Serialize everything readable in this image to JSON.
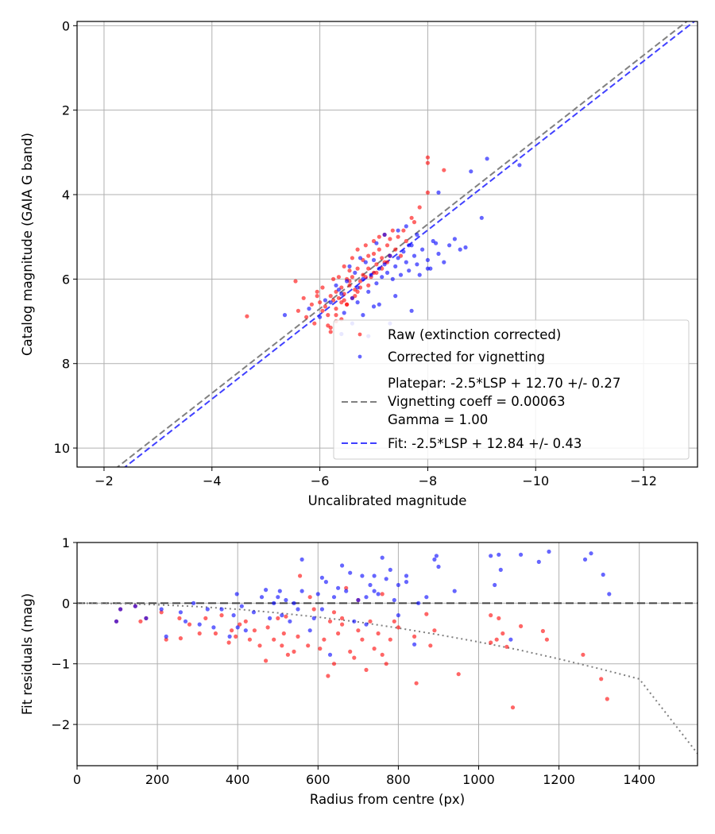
{
  "chart_data": [
    {
      "type": "scatter",
      "xlabel": "Uncalibrated magnitude",
      "ylabel": "Catalog magnitude (GAIA G band)",
      "xlim": [
        -1.5,
        -13
      ],
      "ylim": [
        10.45,
        -0.1
      ],
      "x_inverted": true,
      "y_inverted": true,
      "xticks": [
        -2,
        -4,
        -6,
        -8,
        -10,
        -12
      ],
      "xtick_labels": [
        "−2",
        "−4",
        "−6",
        "−8",
        "−10",
        "−12"
      ],
      "yticks": [
        0,
        2,
        4,
        6,
        8,
        10
      ],
      "ytick_labels": [
        "0",
        "2",
        "4",
        "6",
        "8",
        "10"
      ],
      "grid": true,
      "legend_position": "lower-right",
      "series": [
        {
          "name": "Raw (extinction corrected)",
          "kind": "points",
          "color": "#ff0000",
          "x": [
            -4.65,
            -5.55,
            -5.6,
            -5.7,
            -5.75,
            -5.85,
            -5.9,
            -5.95,
            -6.0,
            -6.05,
            -6.1,
            -6.15,
            -6.2,
            -6.2,
            -6.25,
            -6.25,
            -6.3,
            -6.3,
            -6.35,
            -6.35,
            -6.4,
            -6.4,
            -6.45,
            -6.45,
            -6.5,
            -6.5,
            -6.55,
            -6.55,
            -6.6,
            -6.6,
            -6.65,
            -6.7,
            -6.7,
            -6.75,
            -6.8,
            -6.8,
            -6.85,
            -6.9,
            -6.9,
            -6.95,
            -7.0,
            -7.0,
            -7.05,
            -7.1,
            -7.1,
            -7.15,
            -7.2,
            -7.2,
            -7.25,
            -7.3,
            -7.3,
            -7.35,
            -7.4,
            -7.45,
            -7.5,
            -7.55,
            -7.6,
            -7.7,
            -7.75,
            -7.85,
            -8.0,
            -8.0,
            -8.0,
            -8.3,
            -6.2,
            -6.3,
            -6.4,
            -6.5,
            -6.6,
            -6.7,
            -6.9,
            -7.05,
            -7.15,
            -7.25,
            -5.95,
            -6.05,
            -6.15,
            -6.3,
            -6.45,
            -6.55,
            -6.65,
            -6.75,
            -6.85,
            -7.0
          ],
          "y": [
            6.88,
            6.05,
            6.75,
            6.45,
            6.9,
            6.6,
            7.05,
            6.3,
            6.55,
            6.2,
            6.65,
            6.85,
            6.4,
            7.15,
            6.0,
            6.5,
            6.3,
            6.7,
            5.95,
            6.45,
            6.2,
            6.55,
            5.7,
            6.35,
            6.0,
            6.6,
            5.8,
            6.15,
            5.5,
            5.95,
            6.25,
            5.3,
            5.75,
            6.05,
            5.55,
            5.9,
            5.2,
            5.45,
            5.75,
            5.95,
            5.1,
            5.4,
            5.65,
            5.0,
            5.3,
            5.5,
            4.95,
            5.6,
            5.2,
            5.05,
            5.45,
            4.85,
            5.3,
            5.0,
            5.45,
            4.85,
            5.1,
            4.55,
            4.65,
            4.3,
            3.12,
            3.25,
            3.95,
            3.42,
            7.25,
            7.0,
            6.95,
            6.6,
            6.45,
            6.3,
            6.15,
            5.85,
            5.75,
            5.6,
            6.4,
            6.75,
            7.1,
            6.85,
            6.5,
            6.05,
            6.4,
            6.2,
            5.95,
            5.85
          ]
        },
        {
          "name": "Corrected for vignetting",
          "kind": "points",
          "color": "#0000ff",
          "x": [
            -5.35,
            -5.8,
            -6.0,
            -6.1,
            -6.2,
            -6.3,
            -6.4,
            -6.45,
            -6.5,
            -6.6,
            -6.65,
            -6.7,
            -6.8,
            -6.85,
            -6.9,
            -6.95,
            -7.0,
            -7.05,
            -7.1,
            -7.15,
            -7.2,
            -7.25,
            -7.3,
            -7.35,
            -7.4,
            -7.45,
            -7.5,
            -7.55,
            -7.6,
            -7.65,
            -7.7,
            -7.75,
            -7.8,
            -7.85,
            -7.9,
            -8.0,
            -8.1,
            -8.2,
            -8.3,
            -8.5,
            -8.6,
            -8.7,
            -9.0,
            -9.1,
            -9.7,
            -8.8,
            -8.2,
            -7.6,
            -7.1,
            -6.8,
            -6.6,
            -6.9,
            -7.3,
            -7.7,
            -8.0,
            -8.4,
            -6.35,
            -6.55,
            -6.75,
            -7.05,
            -7.2,
            -7.45,
            -7.65,
            -7.8,
            -8.05,
            -8.15,
            -6.4,
            -6.7,
            -7.0,
            -7.4
          ],
          "y": [
            6.85,
            6.7,
            6.9,
            6.5,
            6.55,
            6.15,
            6.35,
            6.8,
            6.05,
            6.45,
            5.85,
            6.2,
            6.0,
            5.6,
            6.3,
            5.9,
            5.55,
            6.1,
            5.75,
            5.95,
            5.65,
            5.85,
            5.45,
            6.0,
            5.7,
            5.5,
            5.9,
            5.35,
            5.6,
            5.8,
            5.2,
            5.45,
            5.65,
            5.9,
            5.3,
            5.55,
            5.1,
            5.4,
            5.6,
            5.05,
            5.3,
            5.25,
            4.55,
            3.15,
            3.3,
            3.45,
            3.95,
            4.75,
            6.6,
            6.85,
            7.05,
            7.35,
            7.05,
            6.75,
            5.75,
            5.2,
            6.25,
            5.7,
            5.5,
            5.15,
            4.95,
            4.85,
            5.2,
            4.95,
            5.75,
            5.15,
            7.3,
            6.55,
            6.65,
            6.4
          ]
        },
        {
          "name": "Platepar: -2.5*LSP + 12.70 +/- 0.27\nVignetting coeff = 0.00063\nGamma = 1.00",
          "kind": "line",
          "dash": "8,4",
          "color": "#808080",
          "x": [
            -1.5,
            -13
          ],
          "y": [
            11.2,
            -0.3
          ]
        },
        {
          "name": "Fit: -2.5*LSP + 12.84 +/- 0.43",
          "kind": "line",
          "dash": "8,4",
          "color": "#4040ff",
          "x": [
            -1.5,
            -13
          ],
          "y": [
            11.34,
            -0.16
          ]
        }
      ]
    },
    {
      "type": "scatter",
      "xlabel": "Radius from centre (px)",
      "ylabel": "Fit residuals (mag)",
      "xlim": [
        0,
        1545
      ],
      "ylim": [
        -2.68,
        1.0
      ],
      "xticks": [
        0,
        200,
        400,
        600,
        800,
        1000,
        1200,
        1400
      ],
      "xtick_labels": [
        "0",
        "200",
        "400",
        "600",
        "800",
        "1000",
        "1200",
        "1400"
      ],
      "yticks": [
        -2,
        -1,
        0,
        1
      ],
      "ytick_labels": [
        "−2",
        "−1",
        "0",
        "1"
      ],
      "grid": true,
      "series": [
        {
          "kind": "points",
          "color": "#ff0000",
          "x": [
            98,
            108,
            145,
            158,
            172,
            210,
            222,
            255,
            258,
            280,
            305,
            320,
            345,
            360,
            378,
            385,
            395,
            405,
            420,
            430,
            442,
            455,
            470,
            475,
            490,
            500,
            510,
            515,
            525,
            540,
            550,
            555,
            575,
            590,
            605,
            615,
            625,
            630,
            640,
            650,
            660,
            670,
            680,
            690,
            700,
            710,
            720,
            730,
            740,
            750,
            760,
            770,
            780,
            790,
            800,
            840,
            845,
            880,
            890,
            950,
            1030,
            1045,
            1050,
            1060,
            1070,
            1085,
            1105,
            1170,
            1260,
            1305,
            1320,
            1030,
            580,
            640,
            700,
            760,
            1160,
            870,
            520,
            660
          ],
          "y": [
            -0.3,
            -0.1,
            -0.05,
            -0.3,
            -0.25,
            -0.15,
            -0.6,
            -0.25,
            -0.58,
            -0.35,
            -0.5,
            -0.25,
            -0.5,
            -0.2,
            -0.65,
            -0.45,
            -0.55,
            -0.35,
            -0.3,
            -0.6,
            -0.45,
            -0.7,
            -0.95,
            -0.4,
            -0.6,
            -0.25,
            -0.7,
            -0.5,
            -0.85,
            -0.8,
            -0.55,
            0.45,
            -0.7,
            -0.1,
            -0.75,
            -0.6,
            -1.2,
            -0.3,
            -1.0,
            -0.5,
            -0.25,
            0.25,
            -0.8,
            -0.9,
            -0.45,
            -0.6,
            -1.1,
            -0.3,
            -0.75,
            -0.5,
            -0.85,
            -1.0,
            -0.6,
            -0.3,
            -0.4,
            -0.55,
            -1.32,
            -0.7,
            -0.45,
            -1.17,
            -0.65,
            -0.6,
            -0.25,
            -0.5,
            -0.72,
            -1.72,
            -0.38,
            -0.6,
            -0.85,
            -1.25,
            -1.58,
            -0.2,
            0.1,
            -0.15,
            0.05,
            0.15,
            -0.46,
            -0.18,
            -0.22,
            -0.35
          ]
        },
        {
          "kind": "points",
          "color": "#0000ff",
          "x": [
            98,
            108,
            145,
            172,
            210,
            222,
            258,
            270,
            290,
            305,
            325,
            340,
            360,
            380,
            390,
            398,
            400,
            410,
            420,
            440,
            460,
            470,
            480,
            490,
            500,
            505,
            510,
            520,
            530,
            540,
            550,
            560,
            580,
            590,
            600,
            610,
            620,
            630,
            640,
            650,
            660,
            670,
            680,
            700,
            710,
            720,
            730,
            740,
            750,
            760,
            770,
            780,
            790,
            800,
            820,
            840,
            850,
            870,
            890,
            895,
            900,
            940,
            1030,
            1040,
            1050,
            1055,
            1080,
            1105,
            1150,
            1175,
            1265,
            1280,
            1310,
            1325,
            610,
            690,
            740,
            800,
            820,
            720,
            560
          ],
          "y": [
            -0.3,
            -0.1,
            -0.05,
            -0.25,
            -0.1,
            -0.55,
            -0.15,
            -0.3,
            0.0,
            -0.35,
            -0.1,
            -0.4,
            -0.1,
            -0.55,
            -0.2,
            0.15,
            -0.4,
            -0.05,
            -0.45,
            -0.15,
            0.1,
            0.22,
            -0.25,
            0.0,
            0.1,
            0.2,
            -0.2,
            0.05,
            -0.3,
            0.0,
            -0.1,
            0.72,
            -0.45,
            -0.25,
            0.15,
            0.42,
            0.35,
            -0.85,
            0.1,
            0.25,
            0.62,
            0.2,
            0.5,
            0.05,
            0.45,
            0.1,
            0.3,
            0.45,
            0.15,
            0.75,
            0.4,
            0.55,
            0.05,
            0.3,
            0.35,
            -0.68,
            0.0,
            0.1,
            0.72,
            0.78,
            0.6,
            0.2,
            0.78,
            0.3,
            0.8,
            0.55,
            -0.6,
            0.8,
            0.68,
            0.85,
            0.72,
            0.82,
            0.47,
            0.15,
            -0.1,
            -0.3,
            0.2,
            -0.2,
            0.45,
            -0.35,
            0.2
          ]
        },
        {
          "kind": "reference-line",
          "dash": "10,5",
          "color": "#444444",
          "y": 0
        },
        {
          "kind": "curve",
          "dash": "2,4",
          "color": "#808080",
          "x": [
            0,
            100,
            200,
            300,
            400,
            500,
            600,
            700,
            800,
            900,
            1000,
            1100,
            1200,
            1300,
            1400,
            1545
          ],
          "y": [
            0,
            -0.006,
            -0.025,
            -0.057,
            -0.1,
            -0.16,
            -0.23,
            -0.31,
            -0.41,
            -0.52,
            -0.64,
            -0.77,
            -0.92,
            -1.08,
            -1.25,
            -2.48
          ]
        }
      ]
    }
  ]
}
